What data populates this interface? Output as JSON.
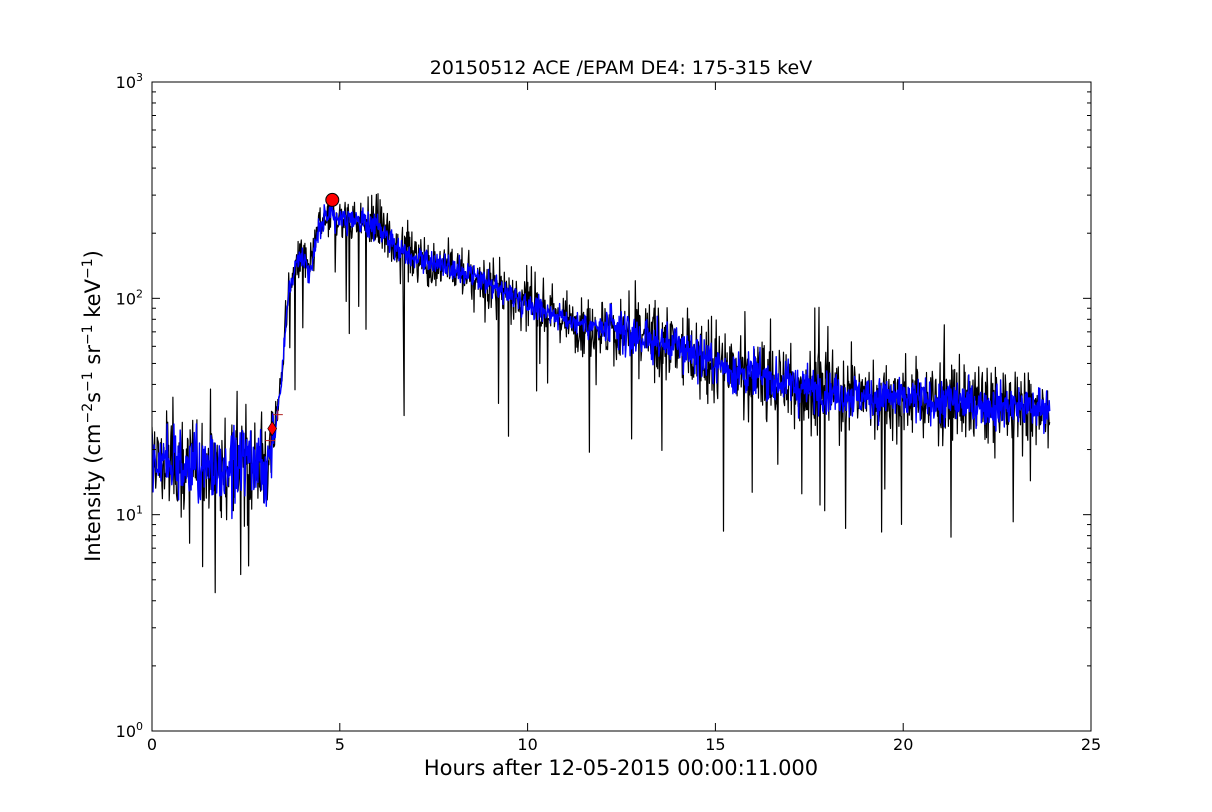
{
  "chart_data": {
    "type": "line",
    "title": "20150512 ACE /EPAM DE4: 175-315 keV",
    "xlabel": "Hours after 12-05-2015 00:00:11.000",
    "ylabel": {
      "prefix": "Intensity (cm",
      "sup1": "−2",
      "mid1": "s",
      "sup2": "−1",
      "mid2": " sr",
      "sup3": "−1",
      "mid3": " keV",
      "sup4": "−1",
      "suffix": ")"
    },
    "xlim": [
      0,
      25
    ],
    "ylim": [
      1,
      1000
    ],
    "yscale": "log",
    "grid": false,
    "x_ticks": [
      {
        "value": 0,
        "label": "0"
      },
      {
        "value": 5,
        "label": "5"
      },
      {
        "value": 10,
        "label": "10"
      },
      {
        "value": 15,
        "label": "15"
      },
      {
        "value": 20,
        "label": "20"
      },
      {
        "value": 25,
        "label": "25"
      }
    ],
    "y_ticks": [
      {
        "value": 1,
        "base": "10",
        "exp": "0"
      },
      {
        "value": 10,
        "base": "10",
        "exp": "1"
      },
      {
        "value": 100,
        "base": "10",
        "exp": "2"
      },
      {
        "value": 1000,
        "base": "10",
        "exp": "3"
      }
    ],
    "series": [
      {
        "role": "raw",
        "color": "#000000",
        "x": [
          0.0,
          0.5,
          1.0,
          1.5,
          2.0,
          2.5,
          3.0,
          3.2,
          3.4,
          3.6,
          3.8,
          4.0,
          4.2,
          4.4,
          4.6,
          4.8,
          5.0,
          5.5,
          6.0,
          6.5,
          7.0,
          7.5,
          8.0,
          8.5,
          9.0,
          9.5,
          10.0,
          10.5,
          11.0,
          11.5,
          12.0,
          12.5,
          13.0,
          13.5,
          14.0,
          14.5,
          15.0,
          15.5,
          16.0,
          16.5,
          17.0,
          17.5,
          18.0,
          18.5,
          19.0,
          19.5,
          20.0,
          20.5,
          21.0,
          21.5,
          22.0,
          22.5,
          23.0,
          23.5,
          23.9
        ],
        "y": [
          18,
          17,
          17,
          17,
          16,
          18,
          17,
          22,
          35,
          95,
          140,
          160,
          130,
          200,
          230,
          240,
          235,
          225,
          215,
          175,
          155,
          145,
          135,
          125,
          115,
          105,
          95,
          88,
          80,
          76,
          72,
          70,
          66,
          62,
          60,
          56,
          50,
          46,
          44,
          42,
          40,
          38,
          37,
          36,
          35,
          35,
          34,
          34,
          33,
          33,
          32,
          32,
          32,
          31,
          31
        ]
      },
      {
        "role": "smoothed",
        "color": "#0000ff",
        "x": [
          0.0,
          0.5,
          1.0,
          1.5,
          2.0,
          2.5,
          3.0,
          3.2,
          3.4,
          3.6,
          3.8,
          4.0,
          4.2,
          4.4,
          4.6,
          4.8,
          5.0,
          5.5,
          6.0,
          6.5,
          7.0,
          7.5,
          8.0,
          8.5,
          9.0,
          9.5,
          10.0,
          10.5,
          11.0,
          11.5,
          12.0,
          12.5,
          13.0,
          13.5,
          14.0,
          14.5,
          15.0,
          15.5,
          16.0,
          16.5,
          17.0,
          17.5,
          18.0,
          18.5,
          19.0,
          19.5,
          20.0,
          20.5,
          21.0,
          21.5,
          22.0,
          22.5,
          23.0,
          23.5,
          23.9
        ],
        "y": [
          18,
          17,
          17,
          17,
          16,
          18,
          17,
          22,
          35,
          95,
          140,
          160,
          130,
          200,
          230,
          240,
          235,
          225,
          215,
          175,
          155,
          145,
          135,
          125,
          115,
          105,
          95,
          88,
          80,
          76,
          72,
          70,
          66,
          62,
          60,
          56,
          50,
          46,
          44,
          42,
          40,
          38,
          37,
          36,
          35,
          35,
          34,
          34,
          33,
          33,
          32,
          32,
          32,
          31,
          31
        ]
      }
    ],
    "markers": [
      {
        "shape": "circle",
        "color": "#ff0000",
        "x": 4.8,
        "y": 285
      },
      {
        "shape": "diamond",
        "color": "#ff0000",
        "x": 3.2,
        "y": 25
      },
      {
        "shape": "plus",
        "color": "#b22222",
        "x": 3.35,
        "y": 29
      },
      {
        "shape": "plus",
        "color": "#b22222",
        "x": 3.15,
        "y": 22
      }
    ]
  }
}
